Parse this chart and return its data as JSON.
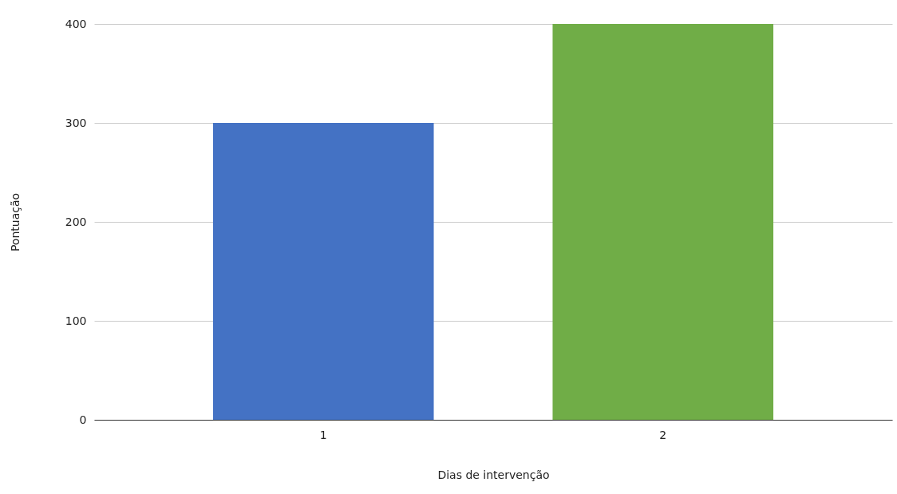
{
  "chart_data": {
    "type": "bar",
    "xlabel": "Dias de intervenção",
    "ylabel": "Pontuação",
    "categories": [
      "1",
      "2"
    ],
    "values": [
      300,
      400
    ],
    "colors": [
      "#4472c4",
      "#70ad47"
    ],
    "ylim": [
      0,
      400
    ],
    "yticks": [
      0,
      100,
      200,
      300,
      400
    ],
    "grid": "y"
  }
}
